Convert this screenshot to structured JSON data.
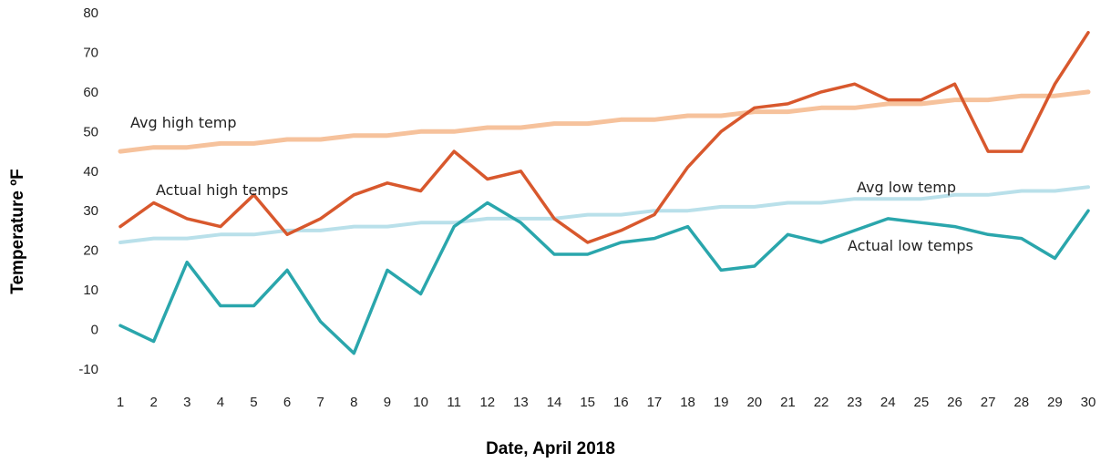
{
  "chart_data": {
    "type": "line",
    "title": "",
    "xlabel": "Date, April 2018",
    "ylabel": "Temperature ºF",
    "x": [
      1,
      2,
      3,
      4,
      5,
      6,
      7,
      8,
      9,
      10,
      11,
      12,
      13,
      14,
      15,
      16,
      17,
      18,
      19,
      20,
      21,
      22,
      23,
      24,
      25,
      26,
      27,
      28,
      29,
      30
    ],
    "ylim": [
      -10,
      80
    ],
    "yticks": [
      -10,
      0,
      10,
      20,
      30,
      40,
      50,
      60,
      70,
      80
    ],
    "grid": false,
    "legend": "inline labels",
    "series": [
      {
        "name": "Avg high temp",
        "color": "#f6c29c",
        "values": [
          45,
          46,
          46,
          47,
          47,
          48,
          48,
          49,
          49,
          50,
          50,
          51,
          51,
          52,
          52,
          53,
          53,
          54,
          54,
          55,
          55,
          56,
          56,
          57,
          57,
          58,
          58,
          59,
          59,
          60
        ]
      },
      {
        "name": "Actual high temps",
        "color": "#d8582d",
        "values": [
          26,
          32,
          28,
          26,
          34,
          24,
          28,
          34,
          37,
          35,
          45,
          38,
          40,
          28,
          22,
          25,
          29,
          41,
          50,
          56,
          57,
          60,
          62,
          58,
          58,
          62,
          45,
          45,
          62,
          75
        ]
      },
      {
        "name": "Avg low temp",
        "color": "#b9e0ea",
        "values": [
          22,
          23,
          23,
          24,
          24,
          25,
          25,
          26,
          26,
          27,
          27,
          28,
          28,
          28,
          29,
          29,
          30,
          30,
          31,
          31,
          32,
          32,
          33,
          33,
          33,
          34,
          34,
          35,
          35,
          36
        ]
      },
      {
        "name": "Actual low temps",
        "color": "#2aa6ac",
        "values": [
          1,
          -3,
          17,
          6,
          6,
          15,
          2,
          -6,
          15,
          9,
          26,
          32,
          27,
          19,
          19,
          22,
          23,
          26,
          15,
          16,
          24,
          22,
          25,
          28,
          27,
          26,
          24,
          23,
          18,
          30
        ]
      }
    ]
  }
}
